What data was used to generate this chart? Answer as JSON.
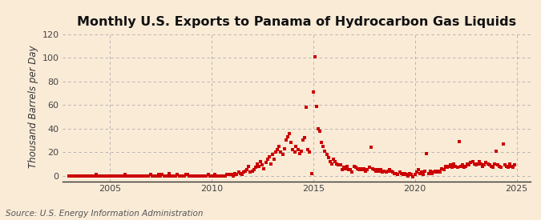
{
  "title": "Monthly U.S. Exports to Panama of Hydrocarbon Gas Liquids",
  "ylabel": "Thousand Barrels per Day",
  "source": "Source: U.S. Energy Information Administration",
  "background_color": "#faebd7",
  "dot_color": "#cc0000",
  "ylim": [
    -5,
    122
  ],
  "yticks": [
    0,
    20,
    40,
    60,
    80,
    100,
    120
  ],
  "title_fontsize": 11.5,
  "ylabel_fontsize": 8.5,
  "source_fontsize": 7.5,
  "data": {
    "2003-01": 0,
    "2003-02": 0,
    "2003-03": 0,
    "2003-04": 0,
    "2003-05": 0,
    "2003-06": 0,
    "2003-07": 0,
    "2003-08": 0,
    "2003-09": 0,
    "2003-10": 0,
    "2003-11": 0,
    "2003-12": 0,
    "2004-01": 0,
    "2004-02": 0,
    "2004-03": 0,
    "2004-04": 0,
    "2004-05": 1,
    "2004-06": 0,
    "2004-07": 0,
    "2004-08": 0,
    "2004-09": 0,
    "2004-10": 0,
    "2004-11": 0,
    "2004-12": 0,
    "2005-01": 0,
    "2005-02": 0,
    "2005-03": 0,
    "2005-04": 0,
    "2005-05": 0,
    "2005-06": 0,
    "2005-07": 0,
    "2005-08": 0,
    "2005-09": 0,
    "2005-10": 1,
    "2005-11": 0,
    "2005-12": 0,
    "2006-01": 0,
    "2006-02": 0,
    "2006-03": 0,
    "2006-04": 0,
    "2006-05": 0,
    "2006-06": 0,
    "2006-07": 0,
    "2006-08": 0,
    "2006-09": 0,
    "2006-10": 0,
    "2006-11": 0,
    "2006-12": 0,
    "2007-01": 1,
    "2007-02": 0,
    "2007-03": 0,
    "2007-04": 0,
    "2007-05": 0,
    "2007-06": 1,
    "2007-07": 0,
    "2007-08": 1,
    "2007-09": 0,
    "2007-10": 0,
    "2007-11": 0,
    "2007-12": 2,
    "2008-01": 0,
    "2008-02": 0,
    "2008-03": 0,
    "2008-04": 0,
    "2008-05": 1,
    "2008-06": 0,
    "2008-07": 0,
    "2008-08": 0,
    "2008-09": 0,
    "2008-10": 1,
    "2008-11": 1,
    "2008-12": 0,
    "2009-01": 0,
    "2009-02": 0,
    "2009-03": 0,
    "2009-04": 0,
    "2009-05": 0,
    "2009-06": 0,
    "2009-07": 0,
    "2009-08": 0,
    "2009-09": 0,
    "2009-10": 0,
    "2009-11": 1,
    "2009-12": 0,
    "2010-01": 0,
    "2010-02": 0,
    "2010-03": 1,
    "2010-04": 0,
    "2010-05": 0,
    "2010-06": 0,
    "2010-07": 0,
    "2010-08": 0,
    "2010-09": 0,
    "2010-10": 1,
    "2010-11": 1,
    "2010-12": 1,
    "2011-01": 1,
    "2011-02": 0,
    "2011-03": 2,
    "2011-04": 1,
    "2011-05": 3,
    "2011-06": 2,
    "2011-07": 1,
    "2011-08": 3,
    "2011-09": 4,
    "2011-10": 5,
    "2011-11": 8,
    "2011-12": 3,
    "2012-01": 4,
    "2012-02": 5,
    "2012-03": 7,
    "2012-04": 10,
    "2012-05": 8,
    "2012-06": 12,
    "2012-07": 9,
    "2012-08": 6,
    "2012-09": 11,
    "2012-10": 14,
    "2012-11": 16,
    "2012-12": 10,
    "2013-01": 18,
    "2013-02": 14,
    "2013-03": 20,
    "2013-04": 22,
    "2013-05": 25,
    "2013-06": 20,
    "2013-07": 18,
    "2013-08": 23,
    "2013-09": 30,
    "2013-10": 33,
    "2013-11": 36,
    "2013-12": 28,
    "2014-01": 22,
    "2014-02": 20,
    "2014-03": 25,
    "2014-04": 22,
    "2014-05": 19,
    "2014-06": 21,
    "2014-07": 30,
    "2014-08": 32,
    "2014-09": 58,
    "2014-10": 22,
    "2014-11": 20,
    "2014-12": 2,
    "2015-01": 71,
    "2015-02": 101,
    "2015-03": 59,
    "2015-04": 40,
    "2015-05": 38,
    "2015-06": 28,
    "2015-07": 25,
    "2015-08": 21,
    "2015-09": 18,
    "2015-10": 15,
    "2015-11": 12,
    "2015-12": 10,
    "2016-01": 14,
    "2016-02": 12,
    "2016-03": 10,
    "2016-04": 9,
    "2016-05": 9,
    "2016-06": 5,
    "2016-07": 7,
    "2016-08": 6,
    "2016-09": 8,
    "2016-10": 5,
    "2016-11": 5,
    "2016-12": 3,
    "2017-01": 8,
    "2017-02": 7,
    "2017-03": 6,
    "2017-04": 5,
    "2017-05": 6,
    "2017-06": 5,
    "2017-07": 6,
    "2017-08": 4,
    "2017-09": 5,
    "2017-10": 7,
    "2017-11": 24,
    "2017-12": 6,
    "2018-01": 5,
    "2018-02": 4,
    "2018-03": 5,
    "2018-04": 4,
    "2018-05": 5,
    "2018-06": 3,
    "2018-07": 4,
    "2018-08": 3,
    "2018-09": 4,
    "2018-10": 5,
    "2018-11": 4,
    "2018-12": 3,
    "2019-01": 2,
    "2019-02": 2,
    "2019-03": 1,
    "2019-04": 3,
    "2019-05": 2,
    "2019-06": 1,
    "2019-07": 2,
    "2019-08": 1,
    "2019-09": 0,
    "2019-10": 2,
    "2019-11": 1,
    "2019-12": -1,
    "2020-01": 1,
    "2020-02": 3,
    "2020-03": 5,
    "2020-04": 2,
    "2020-05": 3,
    "2020-06": 1,
    "2020-07": 4,
    "2020-08": 19,
    "2020-09": 2,
    "2020-10": 4,
    "2020-11": 2,
    "2020-12": 3,
    "2021-01": 4,
    "2021-02": 3,
    "2021-03": 4,
    "2021-04": 3,
    "2021-05": 6,
    "2021-06": 5,
    "2021-07": 8,
    "2021-08": 7,
    "2021-09": 8,
    "2021-10": 9,
    "2021-11": 7,
    "2021-12": 10,
    "2022-01": 8,
    "2022-02": 7,
    "2022-03": 29,
    "2022-04": 8,
    "2022-05": 9,
    "2022-06": 7,
    "2022-07": 8,
    "2022-08": 10,
    "2022-09": 9,
    "2022-10": 11,
    "2022-11": 12,
    "2022-12": 10,
    "2023-01": 9,
    "2023-02": 10,
    "2023-03": 12,
    "2023-04": 10,
    "2023-05": 8,
    "2023-06": 9,
    "2023-07": 11,
    "2023-08": 10,
    "2023-09": 9,
    "2023-10": 8,
    "2023-11": 7,
    "2023-12": 10,
    "2024-01": 21,
    "2024-02": 9,
    "2024-03": 8,
    "2024-04": 7,
    "2024-05": 27,
    "2024-06": 9,
    "2024-07": 8,
    "2024-08": 7,
    "2024-09": 10,
    "2024-10": 8,
    "2024-11": 7,
    "2024-12": 9
  }
}
